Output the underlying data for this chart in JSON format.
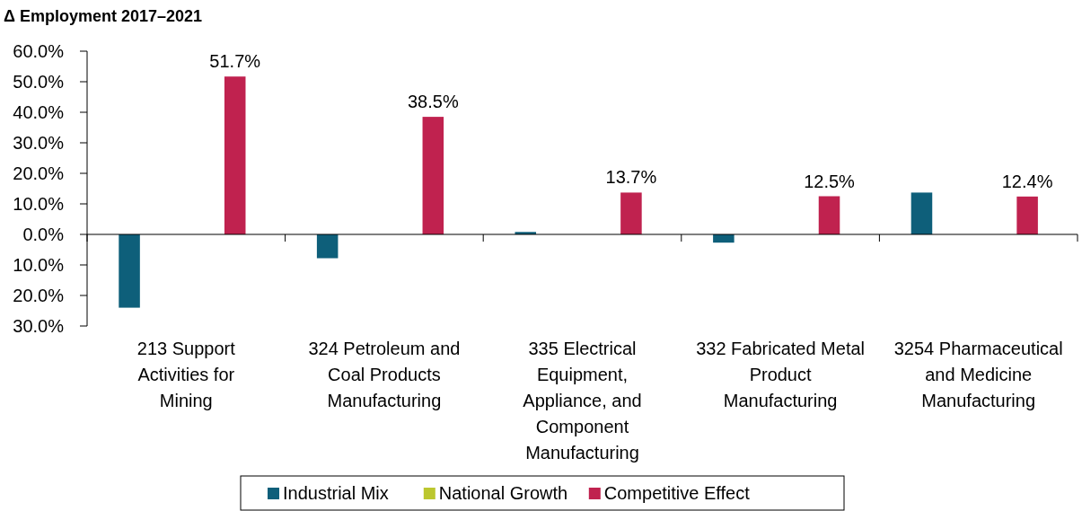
{
  "chart_data": {
    "type": "bar",
    "title": "Δ Employment 2017–2021",
    "categories": [
      "213 Support Activities for Mining",
      "324 Petroleum and Coal Products Manufacturing",
      "335 Electrical Equipment, Appliance, and Component Manufacturing",
      "332 Fabricated Metal Product Manufacturing",
      "3254 Pharmaceutical and Medicine Manufacturing"
    ],
    "series": [
      {
        "name": "Industrial Mix",
        "color": "#0e5f7a",
        "values": [
          -24.0,
          -7.8,
          0.8,
          -2.7,
          13.7
        ]
      },
      {
        "name": "National Growth",
        "color": "#bcc72f",
        "values": [
          null,
          null,
          null,
          null,
          null
        ]
      },
      {
        "name": "Competitive Effect",
        "color": "#c0224f",
        "values": [
          51.7,
          38.5,
          13.7,
          12.5,
          12.4
        ],
        "value_labels": [
          "51.7%",
          "38.5%",
          "13.7%",
          "12.5%",
          "12.4%"
        ]
      }
    ],
    "ylim": [
      -30,
      60
    ],
    "yticks": [
      {
        "value": -30,
        "label": "30.0%"
      },
      {
        "value": -20,
        "label": "20.0%"
      },
      {
        "value": -10,
        "label": "10.0%"
      },
      {
        "value": 0,
        "label": "0.0%"
      },
      {
        "value": 10,
        "label": "10.0%"
      },
      {
        "value": 20,
        "label": "20.0%"
      },
      {
        "value": 30,
        "label": "30.0%"
      },
      {
        "value": 40,
        "label": "40.0%"
      },
      {
        "value": 50,
        "label": "50.0%"
      },
      {
        "value": 60,
        "label": "60.0%"
      }
    ],
    "legend": "bottom"
  }
}
